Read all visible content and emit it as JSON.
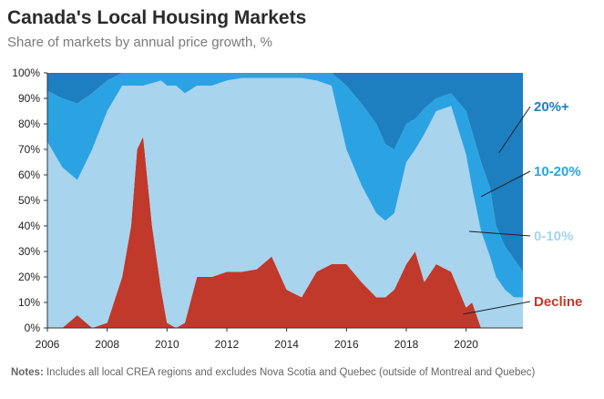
{
  "title": "Canada's Local Housing Markets",
  "subtitle": "Share of markets by annual price growth, %",
  "notes": {
    "label": "Notes:",
    "text": "Includes all local CREA regions and excludes Nova Scotia and Quebec (outside of Montreal and Quebec)"
  },
  "colors": {
    "decline": "#c0392b",
    "growth_0_10": "#a8d4ee",
    "growth_10_20": "#2ba3e3",
    "growth_20_plus": "#1d7fc0"
  },
  "chart_data": {
    "type": "area",
    "stacked": true,
    "x_unit": "year",
    "xlim": [
      2006,
      2021.9
    ],
    "ylim": [
      0,
      100
    ],
    "x_ticks": [
      "2006",
      "2008",
      "2010",
      "2012",
      "2014",
      "2016",
      "2018",
      "2020"
    ],
    "y_ticks": [
      "0%",
      "10%",
      "20%",
      "30%",
      "40%",
      "50%",
      "60%",
      "70%",
      "80%",
      "90%",
      "100%"
    ],
    "x": [
      2006.0,
      2006.5,
      2007.0,
      2007.5,
      2008.0,
      2008.5,
      2008.8,
      2009.0,
      2009.2,
      2009.5,
      2009.8,
      2010.0,
      2010.3,
      2010.6,
      2011.0,
      2011.5,
      2012.0,
      2012.5,
      2013.0,
      2013.5,
      2014.0,
      2014.5,
      2015.0,
      2015.5,
      2016.0,
      2016.5,
      2017.0,
      2017.3,
      2017.6,
      2018.0,
      2018.3,
      2018.6,
      2019.0,
      2019.5,
      2020.0,
      2020.2,
      2020.5,
      2020.8,
      2021.0,
      2021.3,
      2021.6,
      2021.9
    ],
    "series": [
      {
        "name": "Decline",
        "values": [
          0,
          0,
          5,
          0,
          2,
          20,
          40,
          70,
          75,
          40,
          15,
          2,
          0,
          2,
          20,
          20,
          22,
          22,
          23,
          28,
          15,
          12,
          22,
          25,
          25,
          18,
          12,
          12,
          15,
          25,
          30,
          18,
          25,
          22,
          8,
          10,
          0,
          0,
          0,
          0,
          0,
          0
        ]
      },
      {
        "name": "0-10%",
        "values": [
          73,
          63,
          53,
          70,
          83,
          75,
          55,
          25,
          20,
          56,
          82,
          93,
          95,
          90,
          75,
          75,
          75,
          76,
          75,
          70,
          83,
          86,
          75,
          70,
          45,
          38,
          33,
          30,
          30,
          40,
          40,
          58,
          60,
          65,
          60,
          45,
          38,
          28,
          20,
          15,
          12,
          12
        ]
      },
      {
        "name": "10-20%",
        "values": [
          20,
          27,
          30,
          22,
          12,
          5,
          5,
          5,
          5,
          4,
          3,
          5,
          5,
          8,
          5,
          5,
          3,
          2,
          2,
          2,
          2,
          2,
          3,
          5,
          25,
          32,
          35,
          30,
          25,
          15,
          12,
          10,
          5,
          5,
          17,
          22,
          27,
          27,
          20,
          17,
          15,
          10
        ]
      },
      {
        "name": "20%+",
        "values": [
          7,
          10,
          12,
          8,
          3,
          0,
          0,
          0,
          0,
          0,
          0,
          0,
          0,
          0,
          0,
          0,
          0,
          0,
          0,
          0,
          0,
          0,
          0,
          0,
          5,
          12,
          20,
          28,
          30,
          20,
          18,
          14,
          10,
          8,
          15,
          23,
          35,
          45,
          60,
          68,
          73,
          78
        ]
      }
    ]
  }
}
